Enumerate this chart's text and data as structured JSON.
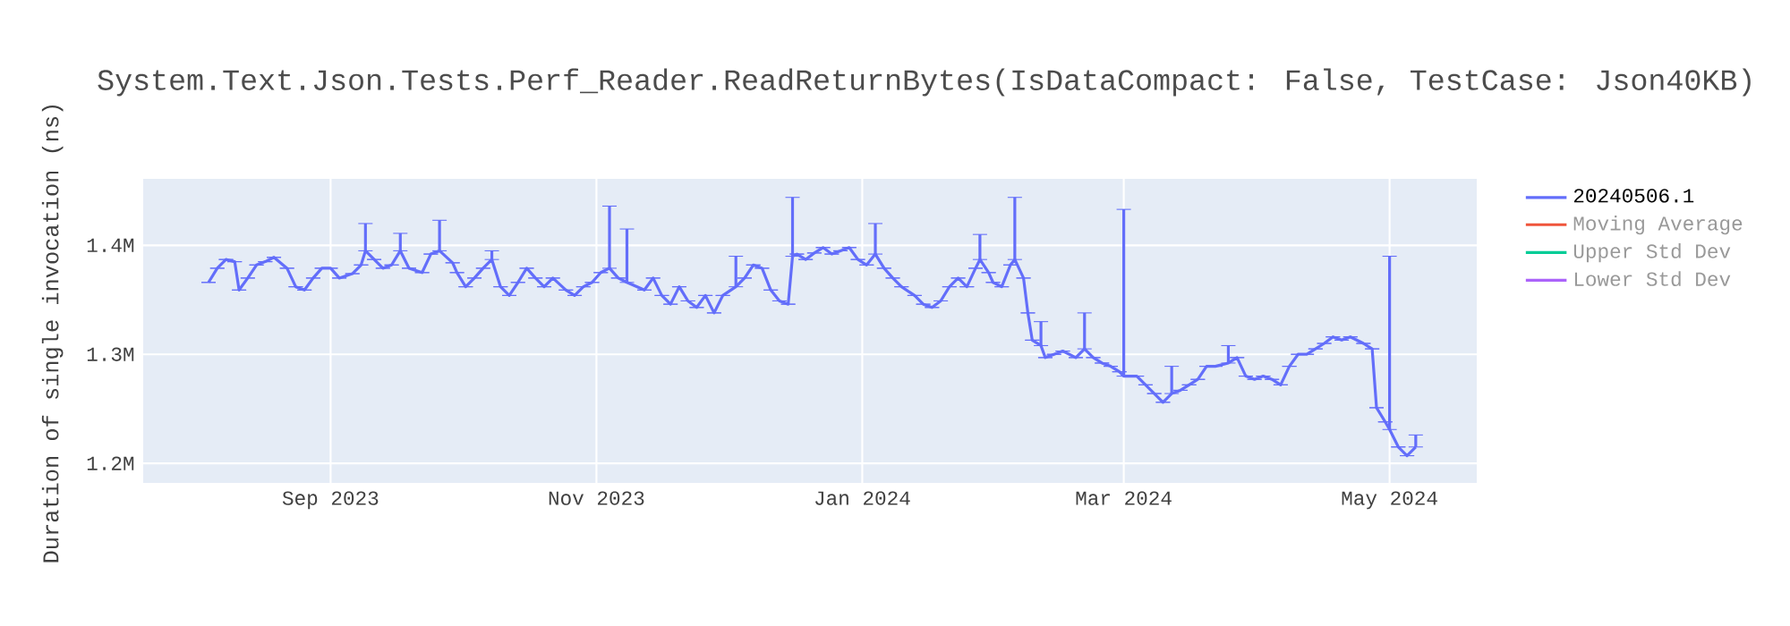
{
  "chart_data": {
    "type": "line",
    "title": "System.Text.Json.Tests.Perf_Reader.ReadReturnBytes(IsDataCompact: False, TestCase: Json40KB)",
    "ylabel": "Duration of single invocation (ns)",
    "x": [
      "2023-08-04",
      "2023-08-06",
      "2023-08-08",
      "2023-08-10",
      "2023-08-11",
      "2023-08-13",
      "2023-08-15",
      "2023-08-17",
      "2023-08-19",
      "2023-08-22",
      "2023-08-24",
      "2023-08-26",
      "2023-08-28",
      "2023-08-30",
      "2023-09-01",
      "2023-09-03",
      "2023-09-06",
      "2023-09-08",
      "2023-09-09",
      "2023-09-11",
      "2023-09-13",
      "2023-09-15",
      "2023-09-17",
      "2023-09-19",
      "2023-09-22",
      "2023-09-24",
      "2023-09-26",
      "2023-09-29",
      "2023-09-30",
      "2023-10-02",
      "2023-10-04",
      "2023-10-06",
      "2023-10-08",
      "2023-10-10",
      "2023-10-12",
      "2023-10-14",
      "2023-10-16",
      "2023-10-18",
      "2023-10-20",
      "2023-10-22",
      "2023-10-25",
      "2023-10-27",
      "2023-10-29",
      "2023-10-31",
      "2023-11-02",
      "2023-11-04",
      "2023-11-06",
      "2023-11-08",
      "2023-11-12",
      "2023-11-14",
      "2023-11-16",
      "2023-11-18",
      "2023-11-20",
      "2023-11-22",
      "2023-11-24",
      "2023-11-26",
      "2023-11-28",
      "2023-11-30",
      "2023-12-03",
      "2023-12-05",
      "2023-12-07",
      "2023-12-09",
      "2023-12-11",
      "2023-12-13",
      "2023-12-15",
      "2023-12-16",
      "2023-12-17",
      "2023-12-19",
      "2023-12-21",
      "2023-12-23",
      "2023-12-25",
      "2023-12-27",
      "2023-12-29",
      "2023-12-31",
      "2024-01-02",
      "2024-01-04",
      "2024-01-06",
      "2024-01-08",
      "2024-01-10",
      "2024-01-13",
      "2024-01-15",
      "2024-01-17",
      "2024-01-19",
      "2024-01-21",
      "2024-01-23",
      "2024-01-25",
      "2024-01-27",
      "2024-01-28",
      "2024-01-30",
      "2024-01-31",
      "2024-02-02",
      "2024-02-04",
      "2024-02-05",
      "2024-02-07",
      "2024-02-08",
      "2024-02-09",
      "2024-02-11",
      "2024-02-12",
      "2024-02-14",
      "2024-02-16",
      "2024-02-19",
      "2024-02-21",
      "2024-02-23",
      "2024-02-25",
      "2024-02-27",
      "2024-02-29",
      "2024-03-01",
      "2024-03-04",
      "2024-03-06",
      "2024-03-08",
      "2024-03-10",
      "2024-03-12",
      "2024-03-14",
      "2024-03-16",
      "2024-03-18",
      "2024-03-20",
      "2024-03-22",
      "2024-03-25",
      "2024-03-27",
      "2024-03-29",
      "2024-03-31",
      "2024-04-02",
      "2024-04-04",
      "2024-04-06",
      "2024-04-08",
      "2024-04-10",
      "2024-04-12",
      "2024-04-14",
      "2024-04-16",
      "2024-04-18",
      "2024-04-20",
      "2024-04-22",
      "2024-04-25",
      "2024-04-27",
      "2024-04-28",
      "2024-04-30",
      "2024-05-01",
      "2024-05-03",
      "2024-05-05",
      "2024-05-07"
    ],
    "series": [
      {
        "name": "20240506.1",
        "color": "#636efa",
        "values": [
          1366000,
          1379000,
          1387000,
          1385000,
          1359000,
          1370000,
          1382000,
          1385000,
          1389000,
          1379000,
          1362000,
          1359000,
          1370000,
          1379000,
          1379000,
          1370000,
          1374000,
          1382000,
          1395000,
          1387000,
          1379000,
          1382000,
          1395000,
          1379000,
          1375000,
          1392000,
          1395000,
          1384000,
          1375000,
          1362000,
          1370000,
          1379000,
          1387000,
          1362000,
          1354000,
          1366000,
          1379000,
          1370000,
          1362000,
          1370000,
          1359000,
          1354000,
          1362000,
          1366000,
          1375000,
          1379000,
          1370000,
          1366000,
          1359000,
          1370000,
          1354000,
          1346000,
          1362000,
          1349000,
          1343000,
          1354000,
          1338000,
          1354000,
          1362000,
          1370000,
          1382000,
          1379000,
          1359000,
          1349000,
          1346000,
          1390000,
          1392000,
          1387000,
          1393000,
          1398000,
          1392000,
          1395000,
          1398000,
          1387000,
          1382000,
          1392000,
          1379000,
          1370000,
          1362000,
          1354000,
          1346000,
          1343000,
          1349000,
          1362000,
          1370000,
          1362000,
          1379000,
          1387000,
          1375000,
          1366000,
          1362000,
          1382000,
          1387000,
          1370000,
          1338000,
          1313000,
          1308000,
          1297000,
          1300000,
          1303000,
          1297000,
          1305000,
          1297000,
          1292000,
          1289000,
          1284000,
          1280000,
          1280000,
          1272000,
          1264000,
          1256000,
          1264000,
          1267000,
          1272000,
          1277000,
          1289000,
          1289000,
          1292000,
          1297000,
          1280000,
          1277000,
          1280000,
          1277000,
          1272000,
          1289000,
          1300000,
          1300000,
          1305000,
          1310000,
          1316000,
          1313000,
          1316000,
          1310000,
          1305000,
          1251000,
          1238000,
          1231000,
          1215000,
          1207000,
          1215000
        ],
        "errors": [
          null,
          null,
          null,
          null,
          null,
          null,
          null,
          null,
          null,
          null,
          null,
          null,
          null,
          null,
          null,
          null,
          null,
          null,
          [
            1395000,
            1420000
          ],
          null,
          null,
          null,
          [
            1395000,
            1411000
          ],
          null,
          null,
          null,
          [
            1395000,
            1423000
          ],
          null,
          null,
          null,
          null,
          null,
          [
            1387000,
            1395000
          ],
          null,
          null,
          null,
          null,
          null,
          null,
          null,
          null,
          null,
          null,
          null,
          null,
          [
            1379000,
            1436000
          ],
          null,
          [
            1366000,
            1415000
          ],
          null,
          null,
          null,
          null,
          null,
          null,
          null,
          null,
          null,
          null,
          [
            1362000,
            1390000
          ],
          null,
          null,
          null,
          null,
          null,
          null,
          [
            1390000,
            1444000
          ],
          null,
          null,
          null,
          null,
          null,
          null,
          null,
          null,
          null,
          [
            1392000,
            1420000
          ],
          null,
          null,
          null,
          null,
          null,
          null,
          null,
          null,
          null,
          null,
          null,
          [
            1387000,
            1410000
          ],
          null,
          null,
          null,
          null,
          [
            1387000,
            1444000
          ],
          null,
          null,
          null,
          [
            1308000,
            1330000
          ],
          null,
          null,
          null,
          null,
          [
            1305000,
            1338000
          ],
          null,
          null,
          null,
          null,
          [
            1280000,
            1433000
          ],
          null,
          null,
          null,
          null,
          [
            1264000,
            1289000
          ],
          null,
          null,
          null,
          null,
          null,
          [
            1292000,
            1308000
          ],
          null,
          null,
          null,
          null,
          null,
          null,
          null,
          null,
          null,
          null,
          null,
          null,
          null,
          null,
          null,
          null,
          null,
          null,
          [
            1231000,
            1390000
          ],
          null,
          null,
          [
            1215000,
            1226000
          ]
        ]
      },
      {
        "name": "Moving Average",
        "color": "#ef553b",
        "values": [
          null,
          null,
          null,
          null,
          null,
          null,
          null,
          null,
          null,
          null,
          null,
          null,
          null,
          null,
          null,
          null,
          null,
          null,
          null,
          null,
          null,
          null,
          null,
          null,
          null,
          null,
          null,
          null,
          null,
          null,
          null,
          null,
          null,
          null,
          null,
          null,
          null,
          null,
          null,
          null,
          null,
          null,
          null,
          null,
          null,
          null,
          null,
          null,
          null,
          null,
          null,
          null,
          null,
          null,
          null,
          null,
          null,
          null,
          null,
          null,
          null,
          null,
          null,
          null,
          null,
          null,
          null,
          null,
          null,
          null,
          null,
          null,
          null,
          null,
          null,
          null,
          null,
          null,
          null,
          null,
          null,
          null,
          null,
          null,
          null,
          null,
          null,
          null,
          null,
          null,
          null,
          null,
          null,
          null,
          null,
          null,
          null,
          null,
          null,
          null,
          null,
          null,
          null,
          null,
          null,
          null,
          null,
          null,
          null,
          null,
          null,
          null,
          null,
          null,
          null,
          null,
          null,
          null,
          null,
          null,
          null,
          null,
          null,
          null,
          null,
          null,
          null,
          null,
          null,
          null,
          null,
          null,
          null,
          null,
          null,
          null,
          null,
          null,
          null,
          null
        ]
      },
      {
        "name": "Upper Std Dev",
        "color": "#00cc96",
        "values": [
          null,
          null,
          null,
          null,
          null,
          null,
          null,
          null,
          null,
          null,
          null,
          null,
          null,
          null,
          null,
          null,
          null,
          null,
          null,
          null,
          null,
          null,
          null,
          null,
          null,
          null,
          null,
          null,
          null,
          null,
          null,
          null,
          null,
          null,
          null,
          null,
          null,
          null,
          null,
          null,
          null,
          null,
          null,
          null,
          null,
          null,
          null,
          null,
          null,
          null,
          null,
          null,
          null,
          null,
          null,
          null,
          null,
          null,
          null,
          null,
          null,
          null,
          null,
          null,
          null,
          null,
          null,
          null,
          null,
          null,
          null,
          null,
          null,
          null,
          null,
          null,
          null,
          null,
          null,
          null,
          null,
          null,
          null,
          null,
          null,
          null,
          null,
          null,
          null,
          null,
          null,
          null,
          null,
          null,
          null,
          null,
          null,
          null,
          null,
          null,
          null,
          null,
          null,
          null,
          null,
          null,
          null,
          null,
          null,
          null,
          null,
          null,
          null,
          null,
          null,
          null,
          null,
          null,
          null,
          null,
          null,
          null,
          null,
          null,
          null,
          null,
          null,
          null,
          null,
          null,
          null,
          null,
          null,
          null,
          null,
          null,
          null,
          null,
          null,
          null
        ]
      },
      {
        "name": "Lower Std Dev",
        "color": "#ab63fa",
        "values": [
          null,
          null,
          null,
          null,
          null,
          null,
          null,
          null,
          null,
          null,
          null,
          null,
          null,
          null,
          null,
          null,
          null,
          null,
          null,
          null,
          null,
          null,
          null,
          null,
          null,
          null,
          null,
          null,
          null,
          null,
          null,
          null,
          null,
          null,
          null,
          null,
          null,
          null,
          null,
          null,
          null,
          null,
          null,
          null,
          null,
          null,
          null,
          null,
          null,
          null,
          null,
          null,
          null,
          null,
          null,
          null,
          null,
          null,
          null,
          null,
          null,
          null,
          null,
          null,
          null,
          null,
          null,
          null,
          null,
          null,
          null,
          null,
          null,
          null,
          null,
          null,
          null,
          null,
          null,
          null,
          null,
          null,
          null,
          null,
          null,
          null,
          null,
          null,
          null,
          null,
          null,
          null,
          null,
          null,
          null,
          null,
          null,
          null,
          null,
          null,
          null,
          null,
          null,
          null,
          null,
          null,
          null,
          null,
          null,
          null,
          null,
          null,
          null,
          null,
          null,
          null,
          null,
          null,
          null,
          null,
          null,
          null,
          null,
          null,
          null,
          null,
          null,
          null,
          null,
          null,
          null,
          null,
          null,
          null,
          null,
          null,
          null,
          null,
          null,
          null
        ]
      }
    ],
    "xlim": [
      "2023-07-20",
      "2024-05-21"
    ],
    "xticks": [
      {
        "value": "2023-09-01",
        "label": "Sep 2023"
      },
      {
        "value": "2023-11-01",
        "label": "Nov 2023"
      },
      {
        "value": "2024-01-01",
        "label": "Jan 2024"
      },
      {
        "value": "2024-03-01",
        "label": "Mar 2024"
      },
      {
        "value": "2024-05-01",
        "label": "May 2024"
      }
    ],
    "ylim": [
      1182000,
      1461000
    ],
    "yticks": [
      {
        "value": 1200000,
        "label": "1.2M"
      },
      {
        "value": 1300000,
        "label": "1.3M"
      },
      {
        "value": 1400000,
        "label": "1.4M"
      }
    ],
    "grid": true,
    "legend": "right",
    "marker": "none",
    "line_style": "solid"
  }
}
